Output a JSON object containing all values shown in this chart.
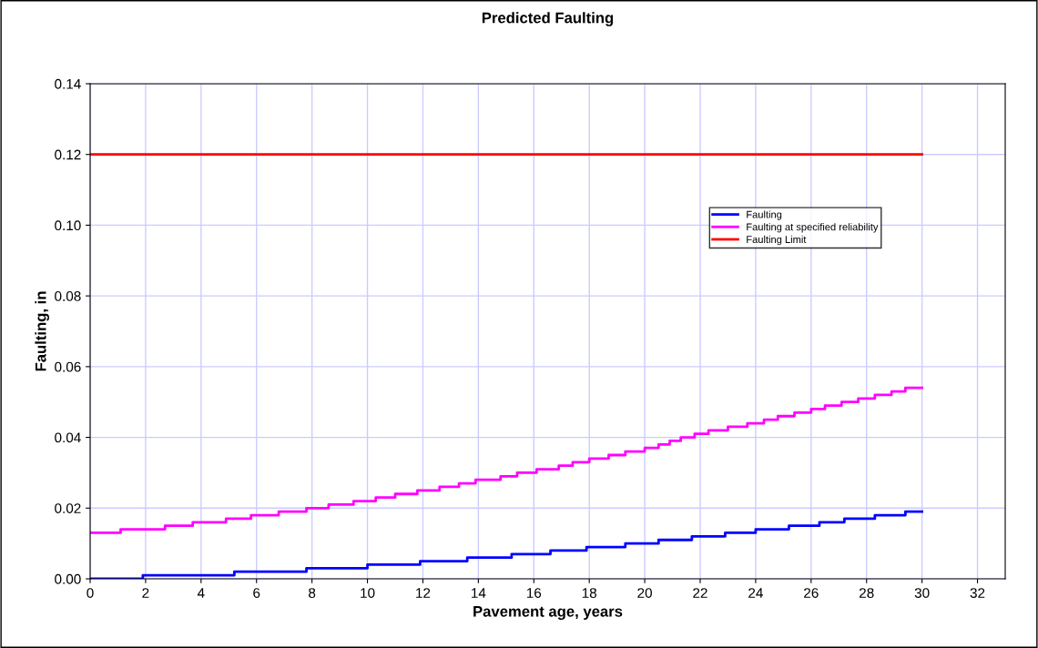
{
  "chart_data": {
    "type": "step",
    "title": "Predicted Faulting",
    "xlabel": "Pavement age, years",
    "ylabel": "Faulting, in",
    "series": [
      {
        "name": "Faulting",
        "color": "#0000ff",
        "x": [
          0,
          1.9,
          5.2,
          7.8,
          10.0,
          11.9,
          13.6,
          15.2,
          16.6,
          17.9,
          19.3,
          20.5,
          21.7,
          22.9,
          24.0,
          25.2,
          26.3,
          27.2,
          28.3,
          29.4,
          30
        ],
        "values": [
          0,
          0.001,
          0.002,
          0.003,
          0.004,
          0.005,
          0.006,
          0.007,
          0.008,
          0.009,
          0.01,
          0.011,
          0.012,
          0.013,
          0.014,
          0.015,
          0.016,
          0.017,
          0.018,
          0.019,
          0.019
        ]
      },
      {
        "name": "Faulting at specified reliability",
        "color": "#ff00ff",
        "x": [
          0,
          1.1,
          2.7,
          3.7,
          4.9,
          5.8,
          6.8,
          7.8,
          8.6,
          9.5,
          10.3,
          11.0,
          11.8,
          12.6,
          13.3,
          13.9,
          14.8,
          15.4,
          16.1,
          16.9,
          17.4,
          18.0,
          18.7,
          19.3,
          20.0,
          20.5,
          20.9,
          21.3,
          21.8,
          22.3,
          23.0,
          23.7,
          24.3,
          24.8,
          25.4,
          26.0,
          26.5,
          27.1,
          27.7,
          28.3,
          28.9,
          29.4,
          30
        ],
        "values": [
          0.013,
          0.014,
          0.015,
          0.016,
          0.017,
          0.018,
          0.019,
          0.02,
          0.021,
          0.022,
          0.023,
          0.024,
          0.025,
          0.026,
          0.027,
          0.028,
          0.029,
          0.03,
          0.031,
          0.032,
          0.033,
          0.034,
          0.035,
          0.036,
          0.037,
          0.038,
          0.039,
          0.04,
          0.041,
          0.042,
          0.043,
          0.044,
          0.045,
          0.046,
          0.047,
          0.048,
          0.049,
          0.05,
          0.051,
          0.052,
          0.053,
          0.054,
          0.054
        ]
      },
      {
        "name": "Faulting Limit",
        "type": "line",
        "color": "#ff0000",
        "x": [
          0,
          30
        ],
        "values": [
          0.12,
          0.12
        ]
      }
    ],
    "xlim": [
      0,
      33
    ],
    "xticks": [
      0,
      2,
      4,
      6,
      8,
      10,
      12,
      14,
      16,
      18,
      20,
      22,
      24,
      26,
      28,
      30,
      32
    ],
    "ylim": [
      0,
      0.14
    ],
    "yticks": [
      {
        "value": 0,
        "label": "0.00"
      },
      {
        "value": 0.02,
        "label": "0.02"
      },
      {
        "value": 0.04,
        "label": "0.04"
      },
      {
        "value": 0.06,
        "label": "0.06"
      },
      {
        "value": 0.08,
        "label": "0.08"
      },
      {
        "value": 0.1,
        "label": "0.10"
      },
      {
        "value": 0.12,
        "label": "0.12"
      },
      {
        "value": 0.14,
        "label": "0.14"
      }
    ],
    "grid": true,
    "legend": "right",
    "line_style": "solid",
    "marker": "none"
  }
}
